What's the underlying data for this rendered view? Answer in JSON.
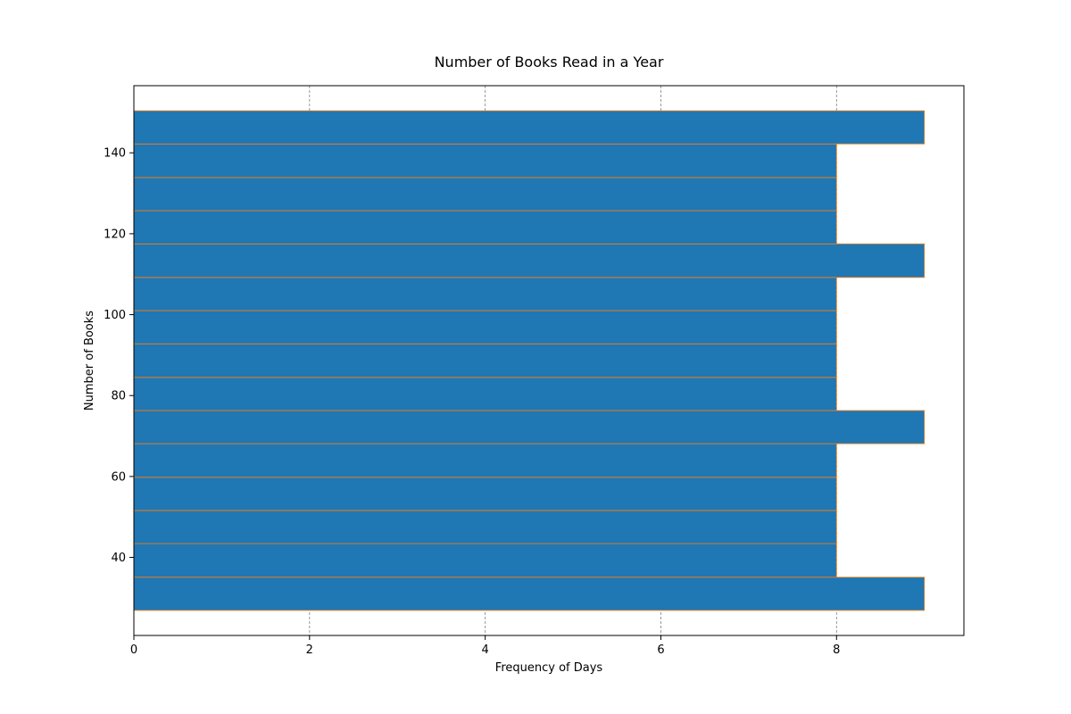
{
  "chart_data": {
    "type": "bar",
    "orientation": "horizontal",
    "title": "Number of Books Read in a Year",
    "xlabel": "Frequency of Days",
    "ylabel": "Number of Books",
    "bins": [
      {
        "start": 26.9,
        "end": 35.1,
        "value": 9
      },
      {
        "start": 35.1,
        "end": 43.4,
        "value": 8
      },
      {
        "start": 43.4,
        "end": 51.6,
        "value": 8
      },
      {
        "start": 51.6,
        "end": 59.8,
        "value": 8
      },
      {
        "start": 59.8,
        "end": 68.1,
        "value": 8
      },
      {
        "start": 68.1,
        "end": 76.3,
        "value": 9
      },
      {
        "start": 76.3,
        "end": 84.5,
        "value": 8
      },
      {
        "start": 84.5,
        "end": 92.8,
        "value": 8
      },
      {
        "start": 92.8,
        "end": 101.0,
        "value": 8
      },
      {
        "start": 101.0,
        "end": 109.2,
        "value": 8
      },
      {
        "start": 109.2,
        "end": 117.5,
        "value": 9
      },
      {
        "start": 117.5,
        "end": 125.7,
        "value": 8
      },
      {
        "start": 125.7,
        "end": 133.9,
        "value": 8
      },
      {
        "start": 133.9,
        "end": 142.2,
        "value": 8
      },
      {
        "start": 142.2,
        "end": 150.4,
        "value": 9
      }
    ],
    "xlim": [
      0,
      9.45
    ],
    "ylim": [
      20.7,
      156.6
    ],
    "xticks": [
      0,
      2,
      4,
      6,
      8
    ],
    "yticks": [
      40,
      60,
      80,
      100,
      120,
      140
    ],
    "grid": "x-axis dashed",
    "colors": {
      "bar_fill": "#1f77b4",
      "bar_edge": "#ff7f0e",
      "grid": "#808080"
    }
  }
}
